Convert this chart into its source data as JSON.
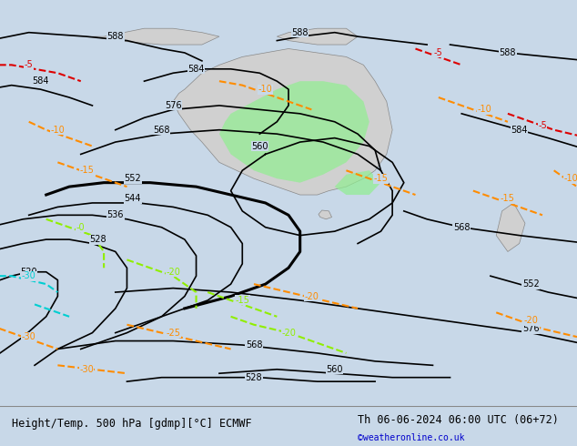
{
  "title_left": "Height/Temp. 500 hPa [gdmp][°C] ECMWF",
  "title_right": "Th 06-06-2024 06:00 UTC (06+72)",
  "credit": "©weatheronline.co.uk",
  "background_color": "#c8d8e8",
  "land_color": "#d0d0d0",
  "green_fill_color": "#90ee90",
  "fig_width": 6.34,
  "fig_height": 4.9,
  "dpi": 100,
  "bottom_bar_color": "#ffffff",
  "title_color": "#000000",
  "credit_color": "#0000cc",
  "z500_contour_color": "#000000",
  "z500_label_color": "#000000",
  "temp_warm_color": "#ff8c00",
  "temp_red_color": "#dd0000",
  "temp_cold_color": "#00ced1",
  "temp_cold2_color": "#90ee00",
  "rain_color": "#4444ff",
  "contour_linewidth": 1.2,
  "thick_linewidth": 2.2,
  "dashed_linewidth": 1.5,
  "font_size_title": 8.5,
  "font_size_labels": 7,
  "font_size_credit": 7
}
